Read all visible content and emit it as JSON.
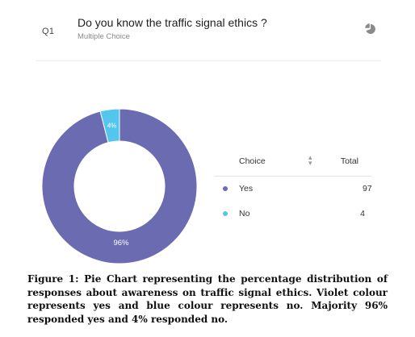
{
  "question": {
    "number": "Q1",
    "title": "Do you know the traffic signal ethics ?",
    "type": "Multiple Choice",
    "chart_icon": "pie-chart-icon"
  },
  "table": {
    "header_choice": "Choice",
    "header_total": "Total",
    "rows": [
      {
        "label": "Yes",
        "total": "97",
        "color": "#6b6bb2"
      },
      {
        "label": "No",
        "total": "4",
        "color": "#53c6ef"
      }
    ]
  },
  "chart_data": {
    "type": "pie",
    "donut": true,
    "categories": [
      "Yes",
      "No"
    ],
    "values": [
      96,
      4
    ],
    "labels": [
      "96%",
      "4%"
    ],
    "colors": [
      "#6b6bb2",
      "#53c6ef"
    ]
  },
  "caption": "Figure 1: Pie Chart representing the percentage distribution of responses about awareness on traffic signal ethics. Violet colour represents yes and blue colour represents no. Majority 96% responded yes and 4% responded no."
}
